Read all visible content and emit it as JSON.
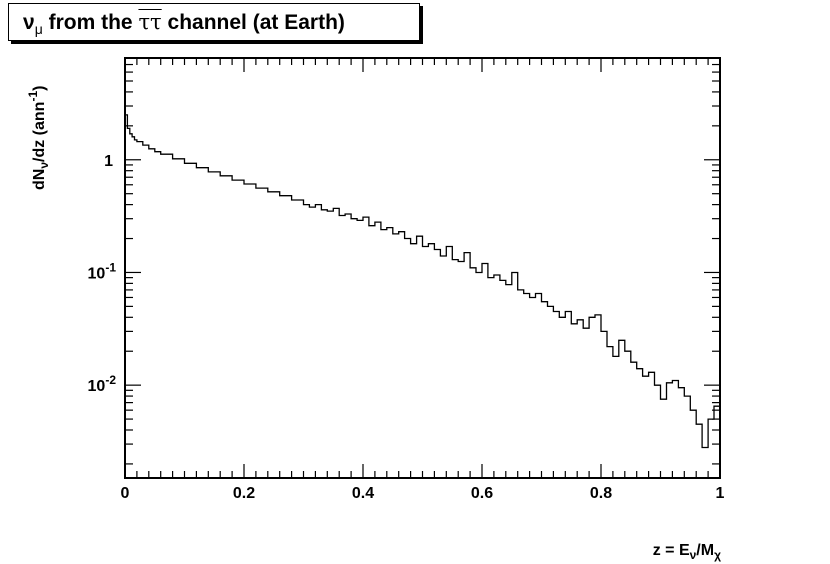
{
  "title": {
    "prefix": "ν",
    "prefix_sub": "μ",
    "mid": " from the ",
    "tau": "ττ",
    "suffix": " channel (at Earth)"
  },
  "chart_data": {
    "type": "line",
    "style": "step-histogram",
    "xlabel_parts": {
      "main": "z = E",
      "sub1": "ν",
      "mid": "/M",
      "sub2": "χ"
    },
    "ylabel_parts": {
      "main": "dN",
      "sub": "ν",
      "rest": "/dz (ann",
      "sup": "-1",
      "end": ")"
    },
    "xlim": [
      0,
      1
    ],
    "ylim": [
      0.0015,
      8.0
    ],
    "yscale": "log",
    "grid": false,
    "x_ticks": [
      "0",
      "0.2",
      "0.4",
      "0.6",
      "0.8",
      "1"
    ],
    "x_tick_values": [
      0,
      0.2,
      0.4,
      0.6,
      0.8,
      1
    ],
    "y_ticks": [
      {
        "value": 1,
        "base": "1",
        "exp": ""
      },
      {
        "value": 0.1,
        "base": "10",
        "exp": "-1"
      },
      {
        "value": 0.01,
        "base": "10",
        "exp": "-2"
      }
    ],
    "series": [
      {
        "x": [
          0.0,
          0.004,
          0.008,
          0.012,
          0.016,
          0.02,
          0.03,
          0.04,
          0.05,
          0.06,
          0.08,
          0.1,
          0.12,
          0.14,
          0.16,
          0.18,
          0.2,
          0.22,
          0.24,
          0.26,
          0.28,
          0.3,
          0.31,
          0.32,
          0.33,
          0.34,
          0.35,
          0.36,
          0.37,
          0.38,
          0.39,
          0.4,
          0.41,
          0.42,
          0.43,
          0.44,
          0.45,
          0.46,
          0.47,
          0.48,
          0.49,
          0.5,
          0.51,
          0.52,
          0.53,
          0.54,
          0.55,
          0.56,
          0.57,
          0.58,
          0.59,
          0.6,
          0.61,
          0.62,
          0.63,
          0.64,
          0.65,
          0.66,
          0.67,
          0.68,
          0.69,
          0.7,
          0.71,
          0.72,
          0.73,
          0.74,
          0.75,
          0.76,
          0.77,
          0.78,
          0.79,
          0.8,
          0.81,
          0.82,
          0.83,
          0.84,
          0.85,
          0.86,
          0.87,
          0.88,
          0.89,
          0.9,
          0.91,
          0.92,
          0.93,
          0.94,
          0.95,
          0.96,
          0.97,
          0.98,
          0.99,
          1.0
        ],
        "y": [
          2.5,
          1.9,
          1.7,
          1.6,
          1.5,
          1.45,
          1.35,
          1.25,
          1.18,
          1.12,
          1.02,
          0.93,
          0.85,
          0.78,
          0.72,
          0.66,
          0.61,
          0.56,
          0.52,
          0.48,
          0.44,
          0.4,
          0.38,
          0.4,
          0.36,
          0.35,
          0.37,
          0.32,
          0.33,
          0.3,
          0.29,
          0.31,
          0.26,
          0.28,
          0.24,
          0.25,
          0.22,
          0.23,
          0.2,
          0.18,
          0.21,
          0.17,
          0.18,
          0.16,
          0.14,
          0.17,
          0.13,
          0.125,
          0.15,
          0.11,
          0.1,
          0.12,
          0.09,
          0.095,
          0.085,
          0.078,
          0.1,
          0.07,
          0.065,
          0.06,
          0.065,
          0.055,
          0.05,
          0.045,
          0.04,
          0.045,
          0.035,
          0.038,
          0.032,
          0.04,
          0.042,
          0.03,
          0.022,
          0.018,
          0.025,
          0.02,
          0.016,
          0.014,
          0.012,
          0.013,
          0.01,
          0.0075,
          0.0105,
          0.011,
          0.0095,
          0.008,
          0.006,
          0.0045,
          0.0028,
          0.005,
          0.0065,
          0.0055
        ]
      }
    ]
  }
}
